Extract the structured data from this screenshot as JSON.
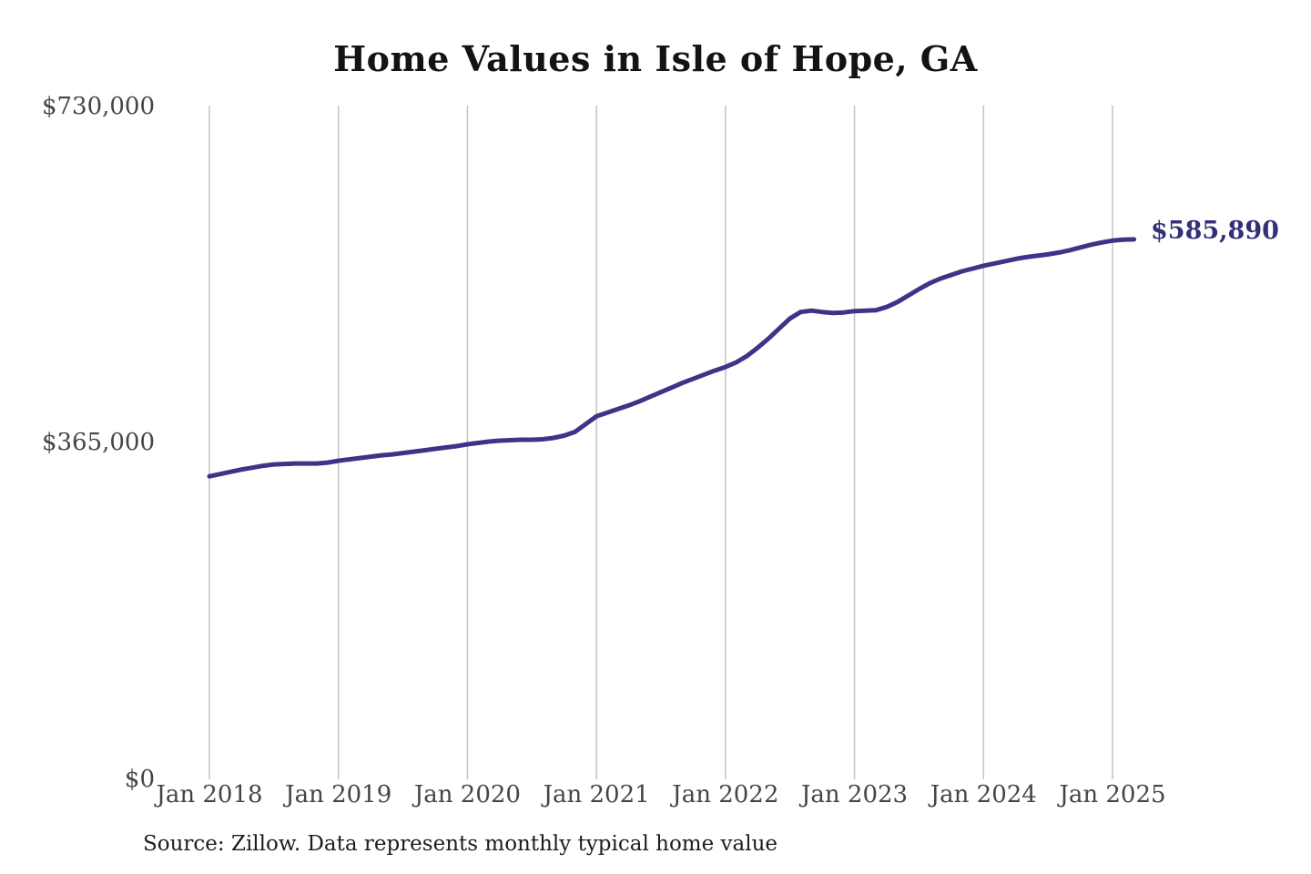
{
  "colors": {
    "line": "#3c3487",
    "end_label": "#333078",
    "gridline": "#c4c4c4",
    "axis_text": "#454545",
    "title_text": "#131313",
    "background": "#ffffff"
  },
  "chart_data": {
    "type": "line",
    "title": "Home Values in Isle of Hope, GA",
    "note": "Source: Zillow. Data represents monthly typical home value",
    "end_label": "$585,890",
    "final_value": 585890,
    "ylabel": "",
    "xlabel": "",
    "ylim": [
      0,
      730000
    ],
    "yticks": [
      0,
      365000,
      730000
    ],
    "ytick_labels_top_to_bottom": [
      "$730,000",
      "$365,000",
      "$0"
    ],
    "xtick_labels": [
      "Jan 2018",
      "Jan 2019",
      "Jan 2020",
      "Jan 2021",
      "Jan 2022",
      "Jan 2023",
      "Jan 2024",
      "Jan 2025"
    ],
    "months_between_xticks": 12,
    "grid": "vertical-only",
    "legend": "none",
    "x": [
      "2018-01",
      "2018-02",
      "2018-03",
      "2018-04",
      "2018-05",
      "2018-06",
      "2018-07",
      "2018-08",
      "2018-09",
      "2018-10",
      "2018-11",
      "2018-12",
      "2019-01",
      "2019-02",
      "2019-03",
      "2019-04",
      "2019-05",
      "2019-06",
      "2019-07",
      "2019-08",
      "2019-09",
      "2019-10",
      "2019-11",
      "2019-12",
      "2020-01",
      "2020-02",
      "2020-03",
      "2020-04",
      "2020-05",
      "2020-06",
      "2020-07",
      "2020-08",
      "2020-09",
      "2020-10",
      "2020-11",
      "2020-12",
      "2021-01",
      "2021-02",
      "2021-03",
      "2021-04",
      "2021-05",
      "2021-06",
      "2021-07",
      "2021-08",
      "2021-09",
      "2021-10",
      "2021-11",
      "2021-12",
      "2022-01",
      "2022-02",
      "2022-03",
      "2022-04",
      "2022-05",
      "2022-06",
      "2022-07",
      "2022-08",
      "2022-09",
      "2022-10",
      "2022-11",
      "2022-12",
      "2023-01",
      "2023-02",
      "2023-03",
      "2023-04",
      "2023-05",
      "2023-06",
      "2023-07",
      "2023-08",
      "2023-09",
      "2023-10",
      "2023-11",
      "2023-12",
      "2024-01",
      "2024-02",
      "2024-03",
      "2024-04",
      "2024-05",
      "2024-06",
      "2024-07",
      "2024-08",
      "2024-09",
      "2024-10",
      "2024-11",
      "2024-12",
      "2025-01",
      "2025-02",
      "2025-03"
    ],
    "values": [
      327000,
      329500,
      332000,
      334500,
      336500,
      338500,
      340000,
      340500,
      341000,
      341000,
      341000,
      342000,
      344000,
      345500,
      347000,
      348500,
      350000,
      351000,
      352500,
      354000,
      355500,
      357000,
      358500,
      360000,
      362000,
      363500,
      365000,
      366000,
      366500,
      367000,
      367000,
      367500,
      369000,
      371500,
      375500,
      384000,
      392500,
      396500,
      400500,
      404500,
      409000,
      414000,
      419000,
      424000,
      429000,
      433500,
      438000,
      442500,
      446500,
      451500,
      458500,
      467500,
      477500,
      488500,
      499500,
      506500,
      508000,
      506500,
      505500,
      506000,
      507500,
      508000,
      508500,
      512000,
      517500,
      524500,
      531500,
      538000,
      543000,
      547000,
      551000,
      554000,
      557000,
      559500,
      562000,
      564500,
      566500,
      568000,
      569500,
      571500,
      574000,
      577000,
      580000,
      582500,
      584500,
      585500,
      585890
    ]
  }
}
